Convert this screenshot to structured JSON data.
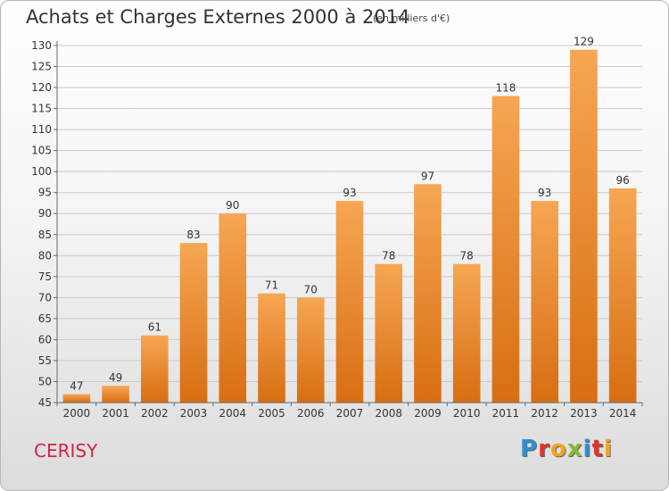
{
  "header": {
    "title": "Achats et Charges Externes 2000 à 2014",
    "unit": "(en milliers d'€)"
  },
  "footer": {
    "commune": "CERISY",
    "logo_letters": [
      "P",
      "r",
      "o",
      "x",
      "i",
      "t",
      "i"
    ],
    "logo_colors": [
      "#2f8fd6",
      "#e5312b",
      "#f3a51b",
      "#8ab833",
      "#2f8fd6",
      "#e5312b",
      "#f3a51b"
    ]
  },
  "colors": {
    "bar_top": "#f6a653",
    "bar_bottom": "#d86e12",
    "grid": "#c9c9c9"
  },
  "chart_data": {
    "type": "bar",
    "title": "Achats et Charges Externes 2000 à 2014",
    "xlabel": "",
    "ylabel": "",
    "ylim": [
      45,
      130
    ],
    "ytick_step": 5,
    "grid": true,
    "categories": [
      "2000",
      "2001",
      "2002",
      "2003",
      "2004",
      "2005",
      "2006",
      "2007",
      "2008",
      "2009",
      "2010",
      "2011",
      "2012",
      "2013",
      "2014"
    ],
    "values": [
      47,
      49,
      61,
      83,
      90,
      71,
      70,
      93,
      78,
      97,
      78,
      118,
      93,
      129,
      96
    ]
  }
}
